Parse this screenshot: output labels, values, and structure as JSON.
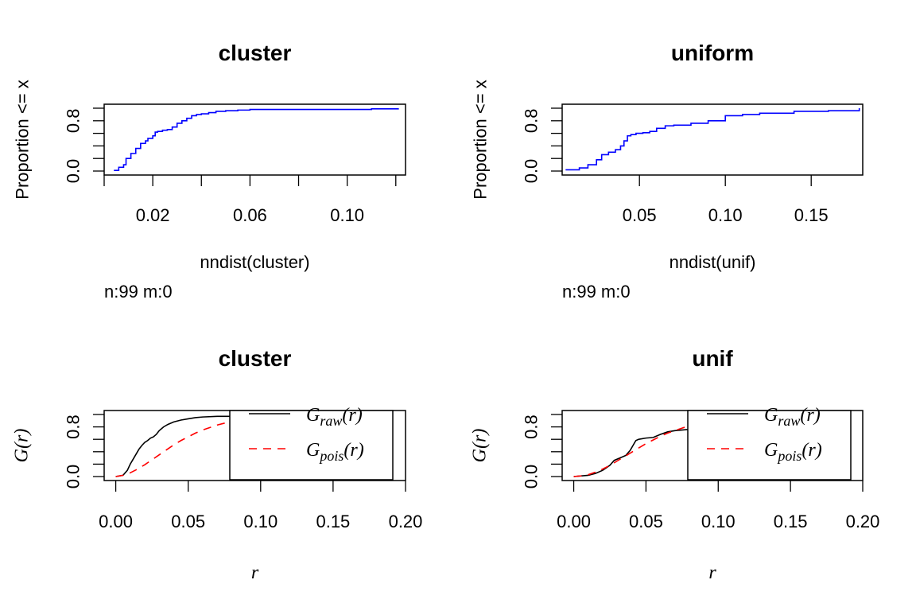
{
  "chart_data": [
    {
      "type": "line",
      "title": "cluster",
      "xlabel": "nndist(cluster)",
      "ylabel": "Proportion <= x",
      "note": "n:99 m:0",
      "xlim": [
        0.0,
        0.124
      ],
      "ylim": [
        0,
        1
      ],
      "x_ticks": [
        0.02,
        0.06,
        0.1
      ],
      "x_tick_labels": [
        "0.02",
        "0.06",
        "0.10"
      ],
      "x_minor_ticks": [
        0.0,
        0.02,
        0.04,
        0.06,
        0.08,
        0.1,
        0.12
      ],
      "y_ticks": [
        0.0,
        0.2,
        0.4,
        0.6,
        0.8,
        1.0
      ],
      "y_tick_labels": [
        "0.0",
        "",
        "",
        "",
        "0.8",
        ""
      ],
      "legend": "none",
      "series": [
        {
          "color": "#0000ff",
          "style": "step",
          "x": [
            0.004,
            0.006,
            0.008,
            0.009,
            0.011,
            0.013,
            0.015,
            0.017,
            0.018,
            0.02,
            0.021,
            0.022,
            0.024,
            0.026,
            0.028,
            0.03,
            0.032,
            0.034,
            0.036,
            0.038,
            0.04,
            0.043,
            0.046,
            0.05,
            0.055,
            0.06,
            0.07,
            0.09,
            0.11,
            0.121
          ],
          "y": [
            0.01,
            0.06,
            0.1,
            0.2,
            0.28,
            0.36,
            0.44,
            0.48,
            0.52,
            0.56,
            0.62,
            0.63,
            0.65,
            0.66,
            0.7,
            0.76,
            0.8,
            0.84,
            0.88,
            0.9,
            0.91,
            0.93,
            0.95,
            0.96,
            0.97,
            0.98,
            0.98,
            0.98,
            0.99,
            1.0
          ]
        }
      ]
    },
    {
      "type": "line",
      "title": "uniform",
      "xlabel": "nndist(unif)",
      "ylabel": "Proportion <= x",
      "note": "n:99 m:0",
      "xlim": [
        0.005,
        0.18
      ],
      "ylim": [
        0,
        1
      ],
      "x_ticks": [
        0.05,
        0.1,
        0.15
      ],
      "x_tick_labels": [
        "0.05",
        "0.10",
        "0.15"
      ],
      "y_ticks": [
        0.0,
        0.2,
        0.4,
        0.6,
        0.8,
        1.0
      ],
      "y_tick_labels": [
        "0.0",
        "",
        "",
        "",
        "0.8",
        ""
      ],
      "legend": "none",
      "series": [
        {
          "color": "#0000ff",
          "style": "step",
          "x": [
            0.007,
            0.015,
            0.02,
            0.025,
            0.028,
            0.032,
            0.036,
            0.039,
            0.041,
            0.043,
            0.045,
            0.048,
            0.052,
            0.056,
            0.06,
            0.065,
            0.07,
            0.08,
            0.09,
            0.1,
            0.11,
            0.12,
            0.14,
            0.16,
            0.178
          ],
          "y": [
            0.02,
            0.05,
            0.1,
            0.18,
            0.26,
            0.3,
            0.34,
            0.4,
            0.48,
            0.56,
            0.58,
            0.6,
            0.61,
            0.63,
            0.68,
            0.72,
            0.73,
            0.76,
            0.8,
            0.88,
            0.9,
            0.92,
            0.95,
            0.96,
            1.0
          ]
        }
      ]
    },
    {
      "type": "line",
      "title": "cluster",
      "xlabel": "r",
      "ylabel": "G(r)",
      "xlim": [
        -0.008,
        0.2
      ],
      "ylim": [
        0,
        1
      ],
      "x_ticks": [
        0.0,
        0.05,
        0.1,
        0.15,
        0.2
      ],
      "x_tick_labels": [
        "0.00",
        "0.05",
        "0.10",
        "0.15",
        "0.20"
      ],
      "y_ticks": [
        0.0,
        0.2,
        0.4,
        0.6,
        0.8,
        1.0
      ],
      "y_tick_labels": [
        "0.0",
        "",
        "",
        "",
        "0.8",
        ""
      ],
      "legend": "top-right",
      "series": [
        {
          "name_base": "G",
          "name_sub": "raw",
          "name_arg": "(r)",
          "color": "#000000",
          "dash": "none",
          "x": [
            0.0,
            0.005,
            0.008,
            0.01,
            0.012,
            0.014,
            0.016,
            0.018,
            0.02,
            0.022,
            0.024,
            0.026,
            0.028,
            0.03,
            0.033,
            0.036,
            0.04,
            0.045,
            0.05,
            0.055,
            0.06,
            0.07,
            0.08,
            0.085
          ],
          "y": [
            0.0,
            0.02,
            0.1,
            0.2,
            0.28,
            0.36,
            0.44,
            0.5,
            0.55,
            0.58,
            0.62,
            0.64,
            0.68,
            0.74,
            0.8,
            0.84,
            0.88,
            0.91,
            0.93,
            0.95,
            0.96,
            0.97,
            0.97,
            0.97
          ]
        },
        {
          "name_base": "G",
          "name_sub": "pois",
          "name_arg": "(r)",
          "color": "#ff0000",
          "dash": "10,8",
          "x": [
            0.0,
            0.005,
            0.01,
            0.015,
            0.02,
            0.025,
            0.03,
            0.035,
            0.04,
            0.045,
            0.05,
            0.055,
            0.06,
            0.065,
            0.07,
            0.075,
            0.08
          ],
          "y": [
            0.0,
            0.02,
            0.06,
            0.12,
            0.19,
            0.27,
            0.35,
            0.43,
            0.51,
            0.58,
            0.64,
            0.7,
            0.75,
            0.79,
            0.83,
            0.86,
            0.89
          ]
        }
      ]
    },
    {
      "type": "line",
      "title": "unif",
      "xlabel": "r",
      "ylabel": "G(r)",
      "xlim": [
        -0.008,
        0.2
      ],
      "ylim": [
        0,
        1
      ],
      "x_ticks": [
        0.0,
        0.05,
        0.1,
        0.15,
        0.2
      ],
      "x_tick_labels": [
        "0.00",
        "0.05",
        "0.10",
        "0.15",
        "0.20"
      ],
      "y_ticks": [
        0.0,
        0.2,
        0.4,
        0.6,
        0.8,
        1.0
      ],
      "y_tick_labels": [
        "0.0",
        "",
        "",
        "",
        "0.8",
        ""
      ],
      "legend": "top-right",
      "series": [
        {
          "name_base": "G",
          "name_sub": "raw",
          "name_arg": "(r)",
          "color": "#000000",
          "dash": "none",
          "x": [
            0.0,
            0.01,
            0.015,
            0.02,
            0.025,
            0.028,
            0.032,
            0.036,
            0.039,
            0.041,
            0.043,
            0.045,
            0.05,
            0.055,
            0.06,
            0.065,
            0.07,
            0.08
          ],
          "y": [
            0.0,
            0.02,
            0.05,
            0.1,
            0.18,
            0.26,
            0.3,
            0.34,
            0.42,
            0.5,
            0.58,
            0.6,
            0.62,
            0.63,
            0.68,
            0.72,
            0.74,
            0.76
          ]
        },
        {
          "name_base": "G",
          "name_sub": "pois",
          "name_arg": "(r)",
          "color": "#ff0000",
          "dash": "10,8",
          "x": [
            0.0,
            0.005,
            0.01,
            0.015,
            0.02,
            0.025,
            0.03,
            0.035,
            0.04,
            0.045,
            0.05,
            0.055,
            0.06,
            0.065,
            0.07,
            0.075,
            0.08
          ],
          "y": [
            0.0,
            0.01,
            0.03,
            0.07,
            0.12,
            0.18,
            0.25,
            0.32,
            0.39,
            0.46,
            0.53,
            0.59,
            0.65,
            0.7,
            0.74,
            0.78,
            0.82
          ]
        }
      ]
    }
  ]
}
